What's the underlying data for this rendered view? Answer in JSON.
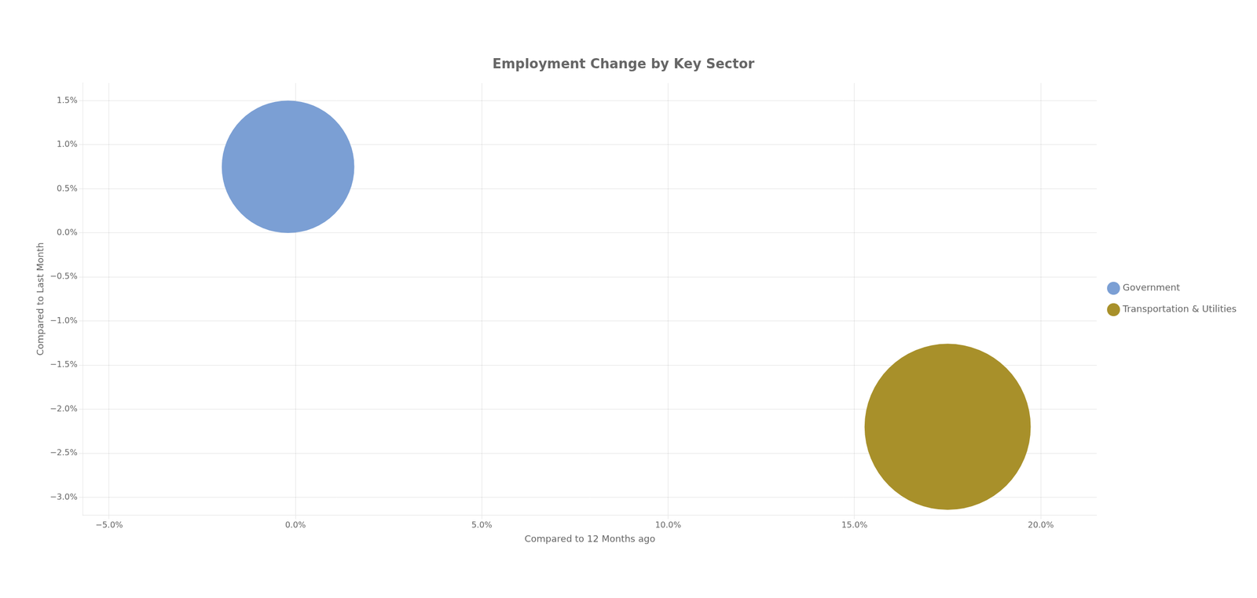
{
  "chart_data": {
    "type": "bubble",
    "title": "Employment Change by Key Sector",
    "xlabel": "Compared to 12 Months ago",
    "ylabel": "Compared to Last Month",
    "series": [
      {
        "name": "Government",
        "color": "#7b9fd4",
        "x": [
          -0.002
        ],
        "y": [
          0.0075
        ],
        "size": [
          35000
        ]
      },
      {
        "name": "Transportation & Utilities",
        "color": "#a8902a",
        "x": [
          0.175
        ],
        "y": [
          -0.022
        ],
        "size": [
          55000
        ]
      }
    ],
    "xlim": [
      -0.057,
      0.215
    ],
    "xticks": [
      {
        "value": -0.05,
        "label": "−5.0%"
      },
      {
        "value": 0.0,
        "label": "0.0%"
      },
      {
        "value": 0.05,
        "label": "5.0%"
      },
      {
        "value": 0.1,
        "label": "10.0%"
      },
      {
        "value": 0.15,
        "label": "15.0%"
      },
      {
        "value": 0.2,
        "label": "20.0%"
      }
    ],
    "ylim": [
      -0.032,
      0.017
    ],
    "yticks": [
      {
        "value": -0.03,
        "label": "−3.0%"
      },
      {
        "value": -0.025,
        "label": "−2.5%"
      },
      {
        "value": -0.02,
        "label": "−2.0%"
      },
      {
        "value": -0.015,
        "label": "−1.5%"
      },
      {
        "value": -0.01,
        "label": "−1.0%"
      },
      {
        "value": -0.005,
        "label": "−0.5%"
      },
      {
        "value": 0.0,
        "label": "0.0%"
      },
      {
        "value": 0.005,
        "label": "0.5%"
      },
      {
        "value": 0.01,
        "label": "1.0%"
      },
      {
        "value": 0.015,
        "label": "1.5%"
      }
    ],
    "grid": true,
    "legend": "right"
  }
}
